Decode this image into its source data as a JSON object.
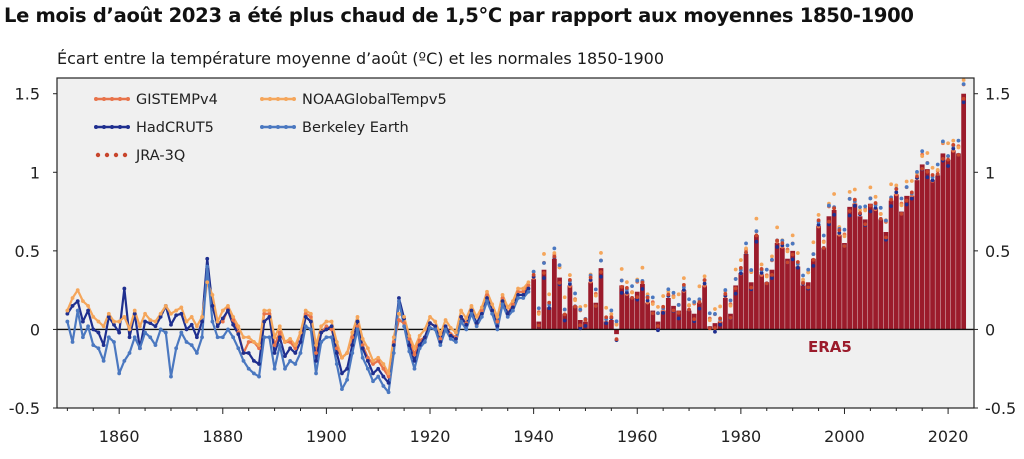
{
  "title": "Le mois d’août 2023 a été plus chaud de 1,5°C par rapport aux moyennes 1850-1900",
  "subtitle": "Écart entre la température moyenne d’août (ºC) et les normales 1850-1900",
  "chart_data": {
    "type": "bar+line",
    "title": "Le mois d’août 2023 a été plus chaud de 1,5°C par rapport aux moyennes 1850-1900",
    "subtitle": "Écart entre la température moyenne d’août (ºC) et les normales 1850-1900",
    "xlabel": "",
    "ylabel": "",
    "xlim": [
      1848,
      2025
    ],
    "ylim": [
      -0.5,
      1.6
    ],
    "x_ticks": [
      1860,
      1880,
      1900,
      1920,
      1940,
      1960,
      1980,
      2000,
      2020
    ],
    "y_ticks": [
      -0.5,
      0,
      0.5,
      1,
      1.5
    ],
    "y_tick_labels": [
      "-0.5",
      "0",
      "0.5",
      "1",
      "1.5"
    ],
    "bar_series": {
      "name": "ERA5",
      "label": "ERA5",
      "color": "#9b1b2b",
      "x": [
        1940,
        1941,
        1942,
        1943,
        1944,
        1945,
        1946,
        1947,
        1948,
        1949,
        1950,
        1951,
        1952,
        1953,
        1954,
        1955,
        1956,
        1957,
        1958,
        1959,
        1960,
        1961,
        1962,
        1963,
        1964,
        1965,
        1966,
        1967,
        1968,
        1969,
        1970,
        1971,
        1972,
        1973,
        1974,
        1975,
        1976,
        1977,
        1978,
        1979,
        1980,
        1981,
        1982,
        1983,
        1984,
        1985,
        1986,
        1987,
        1988,
        1989,
        1990,
        1991,
        1992,
        1993,
        1994,
        1995,
        1996,
        1997,
        1998,
        1999,
        2000,
        2001,
        2002,
        2003,
        2004,
        2005,
        2006,
        2007,
        2008,
        2009,
        2010,
        2011,
        2012,
        2013,
        2014,
        2015,
        2016,
        2017,
        2018,
        2019,
        2020,
        2021,
        2022,
        2023
      ],
      "values": [
        0.32,
        0.05,
        0.38,
        0.14,
        0.45,
        0.33,
        0.1,
        0.28,
        0.15,
        0.06,
        0.05,
        0.3,
        0.17,
        0.39,
        0.05,
        0.06,
        -0.03,
        0.28,
        0.23,
        0.2,
        0.24,
        0.29,
        0.17,
        0.12,
        0.05,
        0.12,
        0.2,
        0.15,
        0.12,
        0.25,
        0.12,
        0.1,
        0.17,
        0.28,
        0.02,
        0.04,
        0.05,
        0.2,
        0.1,
        0.28,
        0.36,
        0.48,
        0.3,
        0.6,
        0.35,
        0.3,
        0.38,
        0.55,
        0.52,
        0.45,
        0.5,
        0.4,
        0.28,
        0.3,
        0.45,
        0.66,
        0.52,
        0.72,
        0.76,
        0.6,
        0.55,
        0.78,
        0.8,
        0.72,
        0.7,
        0.8,
        0.77,
        0.7,
        0.62,
        0.82,
        0.86,
        0.75,
        0.85,
        0.85,
        0.95,
        1.05,
        1.02,
        0.95,
        0.98,
        1.12,
        1.08,
        1.14,
        1.12,
        1.5
      ]
    },
    "x_years": [
      1850,
      1851,
      1852,
      1853,
      1854,
      1855,
      1856,
      1857,
      1858,
      1859,
      1860,
      1861,
      1862,
      1863,
      1864,
      1865,
      1866,
      1867,
      1868,
      1869,
      1870,
      1871,
      1872,
      1873,
      1874,
      1875,
      1876,
      1877,
      1878,
      1879,
      1880,
      1881,
      1882,
      1883,
      1884,
      1885,
      1886,
      1887,
      1888,
      1889,
      1890,
      1891,
      1892,
      1893,
      1894,
      1895,
      1896,
      1897,
      1898,
      1899,
      1900,
      1901,
      1902,
      1903,
      1904,
      1905,
      1906,
      1907,
      1908,
      1909,
      1910,
      1911,
      1912,
      1913,
      1914,
      1915,
      1916,
      1917,
      1918,
      1919,
      1920,
      1921,
      1922,
      1923,
      1924,
      1925,
      1926,
      1927,
      1928,
      1929,
      1930,
      1931,
      1932,
      1933,
      1934,
      1935,
      1936,
      1937,
      1938,
      1939
    ],
    "series": [
      {
        "name": "GISTEMPv4",
        "color": "#e8734a",
        "style": "line",
        "start": 1880,
        "values": [
          0.05,
          0.13,
          0.06,
          -0.02,
          -0.15,
          -0.08,
          -0.08,
          -0.12,
          0.1,
          0.1,
          -0.1,
          -0.02,
          -0.08,
          -0.08,
          -0.12,
          -0.02,
          0.1,
          0.08,
          -0.15,
          -0.02,
          0.02,
          0.0,
          -0.12,
          -0.18,
          -0.15,
          -0.05,
          0.02,
          -0.1,
          -0.18,
          -0.22,
          -0.2,
          -0.25,
          -0.3,
          -0.08,
          0.06,
          0.04,
          -0.06,
          -0.16,
          -0.07,
          -0.05,
          0.04,
          0.02,
          -0.06,
          0.02,
          -0.03,
          -0.05,
          0.08,
          0.04,
          0.12,
          0.03,
          0.12,
          0.22,
          0.12,
          0.05,
          0.2,
          0.1,
          0.16,
          0.24,
          0.24,
          0.28
        ]
      },
      {
        "name": "HadCRUT5",
        "color": "#1f2f8f",
        "style": "line",
        "start": 1850,
        "values": [
          0.1,
          0.15,
          0.18,
          0.05,
          0.12,
          0.0,
          -0.02,
          -0.1,
          0.08,
          0.03,
          -0.02,
          0.26,
          -0.05,
          0.1,
          -0.12,
          0.05,
          0.04,
          0.02,
          0.08,
          0.15,
          0.03,
          0.09,
          0.1,
          0.0,
          0.03,
          -0.05,
          0.05,
          0.45,
          0.15,
          0.02,
          0.07,
          0.12,
          0.03,
          -0.03,
          -0.15,
          -0.15,
          -0.2,
          -0.22,
          0.05,
          0.08,
          -0.15,
          -0.05,
          -0.17,
          -0.12,
          -0.15,
          -0.08,
          0.08,
          0.05,
          -0.2,
          -0.02,
          0.0,
          0.02,
          -0.15,
          -0.28,
          -0.25,
          -0.1,
          0.05,
          -0.12,
          -0.2,
          -0.28,
          -0.25,
          -0.3,
          -0.34,
          -0.1,
          0.2,
          0.07,
          -0.1,
          -0.2,
          -0.1,
          -0.05,
          0.04,
          0.02,
          -0.08,
          0.02,
          -0.04,
          -0.06,
          0.08,
          0.03,
          0.12,
          0.04,
          0.1,
          0.2,
          0.12,
          0.02,
          0.18,
          0.1,
          0.14,
          0.22,
          0.22,
          0.26
        ]
      },
      {
        "name": "NOAAGlobalTempv5",
        "color": "#f5a65b",
        "style": "line",
        "start": 1850,
        "values": [
          0.12,
          0.2,
          0.25,
          0.18,
          0.15,
          0.08,
          0.05,
          0.02,
          0.1,
          0.05,
          0.05,
          0.08,
          0.0,
          0.12,
          0.02,
          0.1,
          0.06,
          0.05,
          0.1,
          0.15,
          0.1,
          0.12,
          0.14,
          0.05,
          0.08,
          0.02,
          0.08,
          0.3,
          0.22,
          0.05,
          0.12,
          0.15,
          0.08,
          0.02,
          -0.05,
          -0.05,
          -0.08,
          -0.1,
          0.12,
          0.12,
          -0.05,
          0.02,
          -0.08,
          -0.06,
          -0.1,
          -0.02,
          0.12,
          0.1,
          -0.1,
          0.02,
          0.05,
          0.05,
          -0.08,
          -0.18,
          -0.15,
          -0.02,
          0.08,
          -0.06,
          -0.12,
          -0.2,
          -0.18,
          -0.22,
          -0.28,
          -0.05,
          0.1,
          0.08,
          -0.04,
          -0.12,
          -0.04,
          0.0,
          0.08,
          0.05,
          -0.03,
          0.06,
          0.01,
          -0.02,
          0.12,
          0.07,
          0.15,
          0.08,
          0.14,
          0.24,
          0.16,
          0.08,
          0.22,
          0.14,
          0.18,
          0.26,
          0.26,
          0.3
        ]
      },
      {
        "name": "Berkeley Earth",
        "color": "#4b78c0",
        "style": "line",
        "start": 1850,
        "values": [
          0.05,
          -0.08,
          0.12,
          -0.05,
          0.02,
          -0.1,
          -0.12,
          -0.2,
          -0.05,
          -0.08,
          -0.28,
          -0.2,
          -0.15,
          -0.05,
          -0.12,
          -0.02,
          -0.05,
          -0.1,
          0.0,
          -0.02,
          -0.3,
          -0.12,
          -0.02,
          -0.08,
          -0.1,
          -0.15,
          -0.05,
          0.4,
          0.05,
          -0.05,
          -0.05,
          0.0,
          -0.05,
          -0.12,
          -0.2,
          -0.25,
          -0.28,
          -0.3,
          -0.05,
          -0.05,
          -0.25,
          -0.1,
          -0.25,
          -0.2,
          -0.22,
          -0.15,
          0.02,
          0.0,
          -0.28,
          -0.08,
          -0.05,
          -0.05,
          -0.22,
          -0.38,
          -0.32,
          -0.15,
          0.0,
          -0.18,
          -0.25,
          -0.33,
          -0.3,
          -0.36,
          -0.4,
          -0.15,
          0.18,
          0.02,
          -0.14,
          -0.25,
          -0.12,
          -0.08,
          0.01,
          0.0,
          -0.1,
          0.0,
          -0.06,
          -0.08,
          0.05,
          0.0,
          0.1,
          0.02,
          0.08,
          0.18,
          0.1,
          0.0,
          0.16,
          0.08,
          0.12,
          0.2,
          0.2,
          0.24
        ]
      },
      {
        "name": "JRA-3Q",
        "color": "#c8452c",
        "style": "dots",
        "start": 1940,
        "values": []
      }
    ],
    "legend": [
      "GISTEMPv4",
      "NOAAGlobalTempv5",
      "HadCRUT5",
      "Berkeley Earth",
      "JRA-3Q"
    ],
    "legend_position": "top-left",
    "annotations": [
      "ERA5"
    ]
  }
}
